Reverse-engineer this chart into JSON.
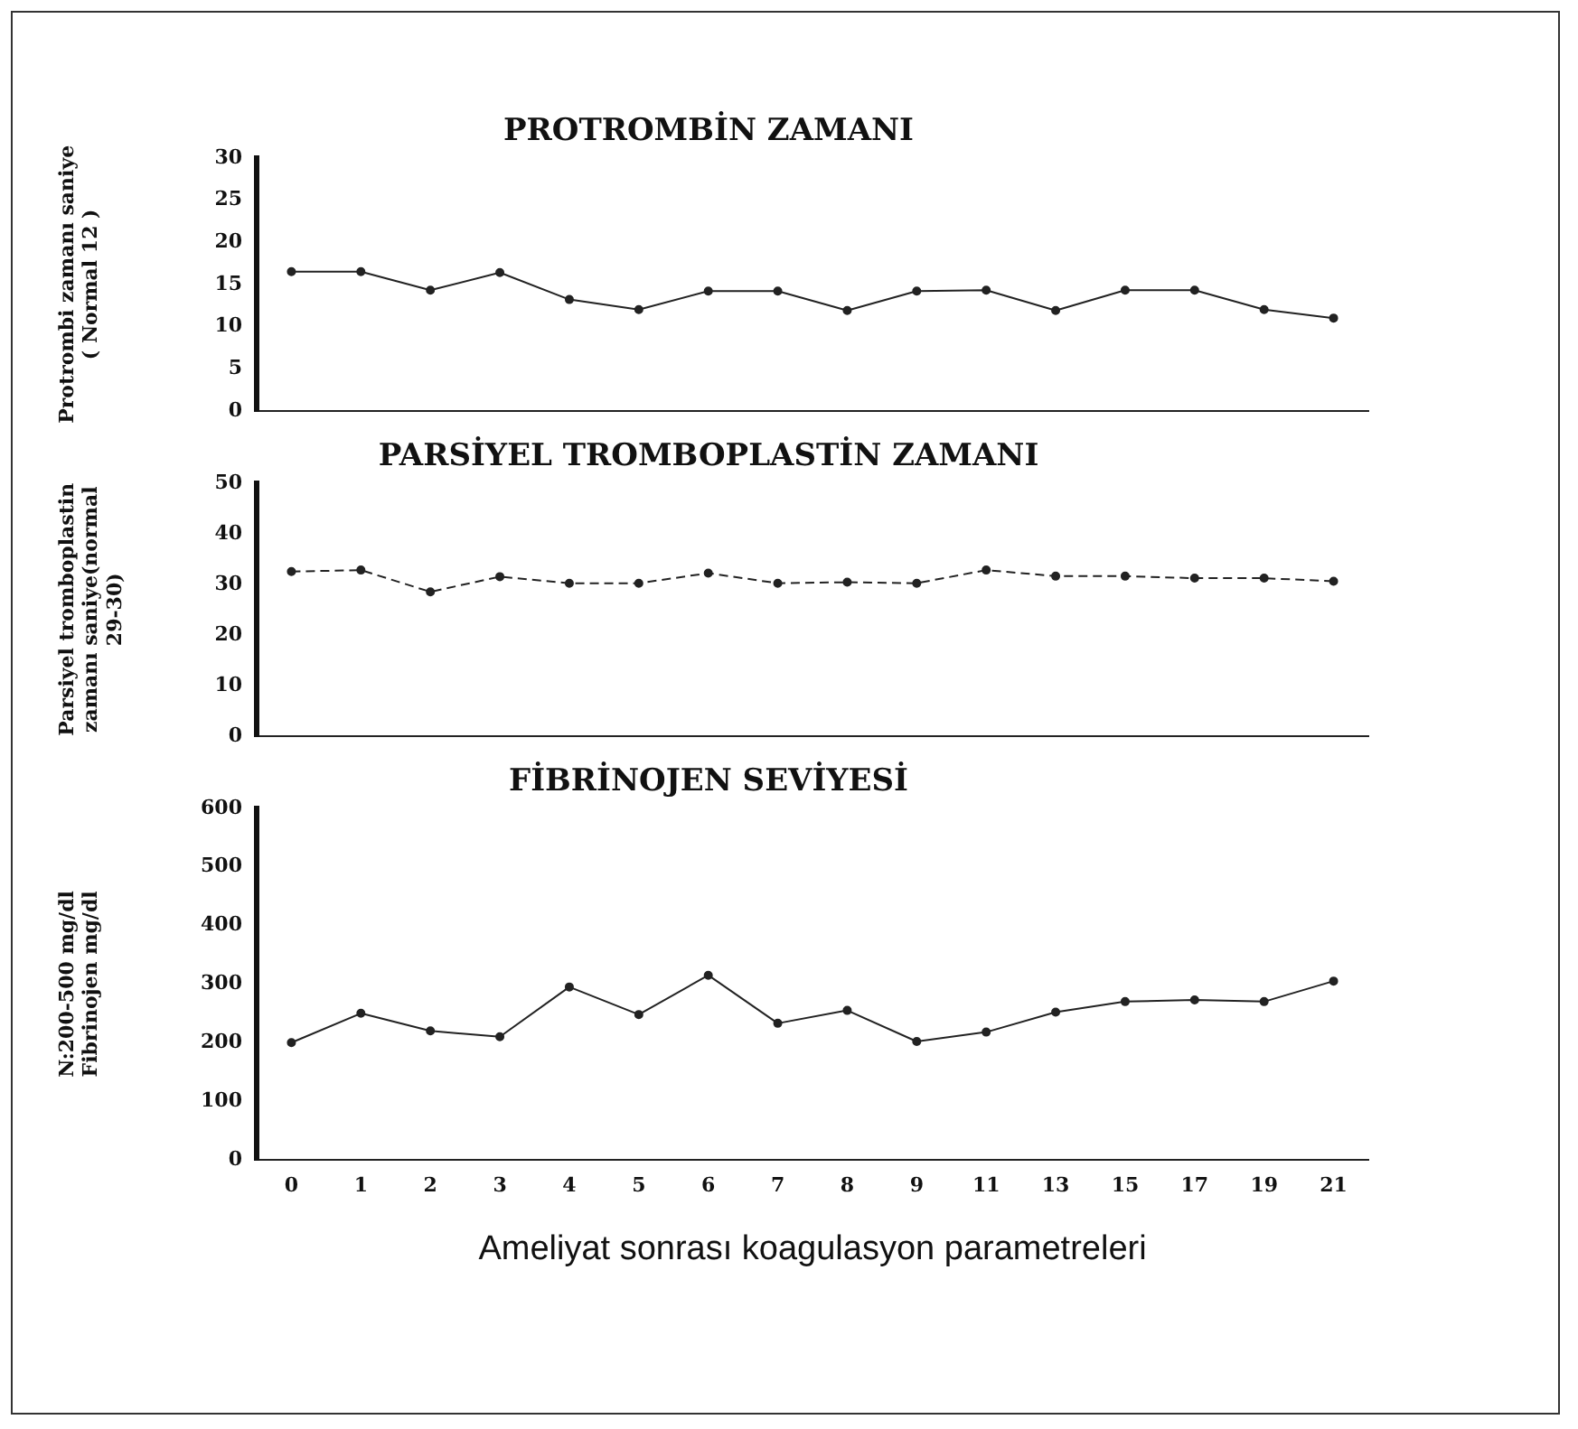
{
  "chart_data": [
    {
      "type": "line",
      "title": "PROTROMBİN ZAMANI",
      "ylabel": "Protrombi zamanı saniye\n( Normal 12 )",
      "categories": [
        "0",
        "1",
        "2",
        "3",
        "4",
        "5",
        "6",
        "7",
        "8",
        "9",
        "11",
        "13",
        "15",
        "17",
        "19",
        "21"
      ],
      "series": [
        {
          "color": "#222222",
          "values": [
            16.5,
            16.5,
            14.3,
            16.4,
            13.2,
            12,
            14.2,
            14.2,
            11.9,
            14.2,
            14.3,
            11.9,
            14.3,
            14.3,
            12,
            11
          ]
        }
      ],
      "ylim": [
        0,
        30
      ],
      "yticks": [
        0,
        5,
        10,
        15,
        20,
        25,
        30
      ],
      "grid": false,
      "marker": "circle",
      "line_style": "solid",
      "tick_labels": "y"
    },
    {
      "type": "line",
      "title": "PARSİYEL TROMBOPLASTİN ZAMANI",
      "ylabel": "Parsiyel tromboplastin\nzamanı saniye(normal\n29-30)",
      "categories": [
        "0",
        "1",
        "2",
        "3",
        "4",
        "5",
        "6",
        "7",
        "8",
        "9",
        "11",
        "13",
        "15",
        "17",
        "19",
        "21"
      ],
      "series": [
        {
          "color": "#222222",
          "values": [
            32.5,
            32.8,
            28.5,
            31.5,
            30.2,
            30.2,
            32.2,
            30.2,
            30.4,
            30.2,
            32.8,
            31.6,
            31.6,
            31.2,
            31.2,
            30.6
          ]
        }
      ],
      "ylim": [
        0,
        50
      ],
      "yticks": [
        0,
        10,
        20,
        30,
        40,
        50
      ],
      "grid": false,
      "marker": "circle",
      "line_style": "dashed",
      "tick_labels": "y"
    },
    {
      "type": "line",
      "title": "FİBRİNOJEN SEVİYESİ",
      "ylabel": "N:200-500 mg/dl\nFibrinojen mg/dl",
      "xlabel": "Ameliyat sonrası koagulasyon parametreleri",
      "categories": [
        "0",
        "1",
        "2",
        "3",
        "4",
        "5",
        "6",
        "7",
        "8",
        "9",
        "11",
        "13",
        "15",
        "17",
        "19",
        "21"
      ],
      "series": [
        {
          "color": "#222222",
          "values": [
            200,
            250,
            220,
            210,
            295,
            248,
            315,
            233,
            255,
            202,
            218,
            252,
            270,
            273,
            270,
            305
          ]
        }
      ],
      "ylim": [
        0,
        600
      ],
      "yticks": [
        0,
        100,
        200,
        300,
        400,
        500,
        600
      ],
      "grid": false,
      "marker": "circle",
      "line_style": "solid"
    }
  ]
}
